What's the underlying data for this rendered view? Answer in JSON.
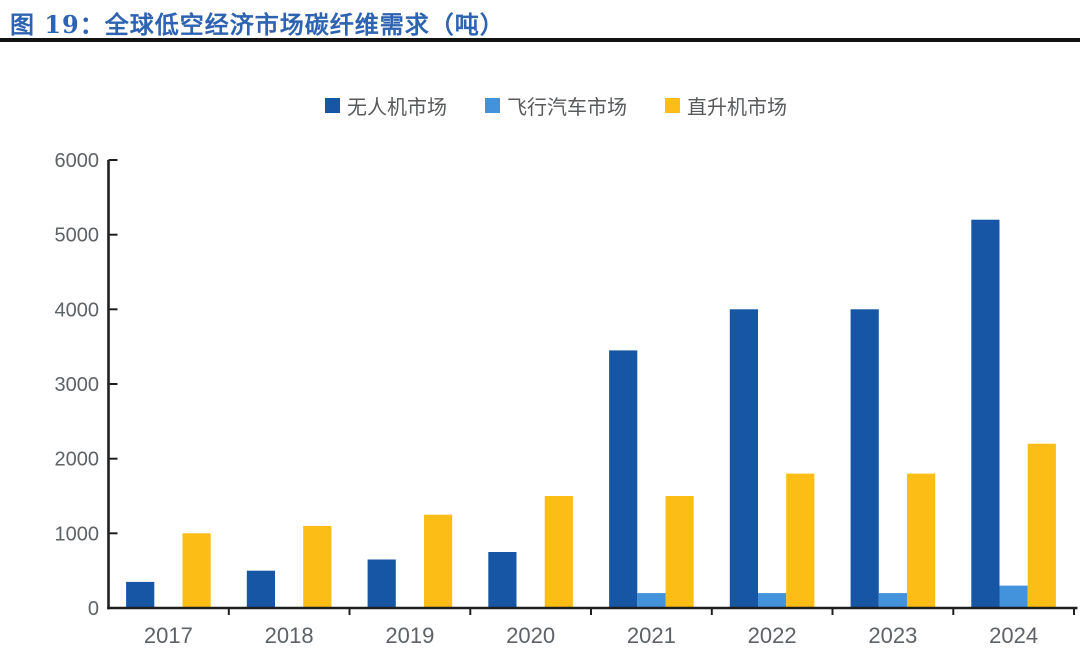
{
  "header": {
    "title": "图 19：全球低空经济市场碳纤维需求（吨）"
  },
  "colors": {
    "title_blue": "#2E63B2",
    "divider": "#121212",
    "axis": "#1F1F1F",
    "axis_label_gray": "#5E6266",
    "legend_text_gray": "#57595B",
    "background": "#FFFFFF"
  },
  "chart_data": {
    "type": "bar",
    "title": "全球低空经济市场碳纤维需求（吨）",
    "categories": [
      "2017",
      "2018",
      "2019",
      "2020",
      "2021",
      "2022",
      "2023",
      "2024"
    ],
    "series": [
      {
        "key": "drone-market",
        "name": "无人机市场",
        "color": "#1656A5",
        "values": [
          350,
          500,
          650,
          750,
          3450,
          4000,
          4000,
          5200
        ]
      },
      {
        "key": "flying-car-market",
        "name": "飞行汽车市场",
        "color": "#4292DC",
        "values": [
          0,
          0,
          0,
          0,
          200,
          200,
          200,
          300
        ]
      },
      {
        "key": "helicopter-market",
        "name": "直升机市场",
        "color": "#FBBD16",
        "values": [
          1000,
          1100,
          1250,
          1500,
          1500,
          1800,
          1800,
          2200
        ]
      }
    ],
    "xlabel": "",
    "ylabel": "",
    "ylim": [
      0,
      6000
    ],
    "ytick_step": 1000,
    "ytick_labels": [
      "0",
      "1000",
      "2000",
      "3000",
      "4000",
      "5000",
      "6000"
    ],
    "legend_position": "top-center",
    "grid": false
  }
}
